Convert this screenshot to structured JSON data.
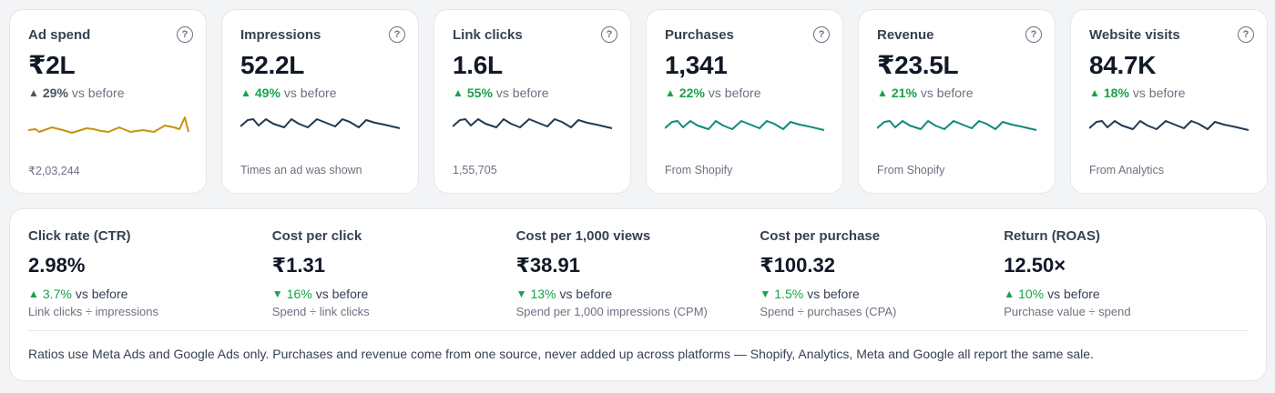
{
  "colors": {
    "gold": "#c9920e",
    "navy": "#1f3a52",
    "teal": "#0f8a7a",
    "green": "#16a34a"
  },
  "kpis": [
    {
      "title": "Ad spend",
      "value": "₹2L",
      "delta": "29%",
      "delta_dir": "up",
      "delta_tone": "gray",
      "vs": "vs before",
      "note": "₹2,03,244",
      "spark_color": "#c9920e",
      "spark_type": "irregular"
    },
    {
      "title": "Impressions",
      "value": "52.2L",
      "delta": "49%",
      "delta_dir": "up",
      "delta_tone": "green",
      "vs": "vs before",
      "note": "Times an ad was shown",
      "spark_color": "#1f3a52",
      "spark_type": "saw"
    },
    {
      "title": "Link clicks",
      "value": "1.6L",
      "delta": "55%",
      "delta_dir": "up",
      "delta_tone": "green",
      "vs": "vs before",
      "note": "1,55,705",
      "spark_color": "#1f3a52",
      "spark_type": "saw"
    },
    {
      "title": "Purchases",
      "value": "1,341",
      "delta": "22%",
      "delta_dir": "up",
      "delta_tone": "green",
      "vs": "vs before",
      "note": "From Shopify",
      "spark_color": "#0f8a7a",
      "spark_type": "saw"
    },
    {
      "title": "Revenue",
      "value": "₹23.5L",
      "delta": "21%",
      "delta_dir": "up",
      "delta_tone": "green",
      "vs": "vs before",
      "note": "From Shopify",
      "spark_color": "#0f8a7a",
      "spark_type": "saw"
    },
    {
      "title": "Website visits",
      "value": "84.7K",
      "delta": "18%",
      "delta_dir": "up",
      "delta_tone": "green",
      "vs": "vs before",
      "note": "From Analytics",
      "spark_color": "#1f3a52",
      "spark_type": "saw"
    }
  ],
  "help_glyph": "?",
  "ratios": [
    {
      "title": "Click rate (CTR)",
      "value": "2.98%",
      "delta": "3.7%",
      "delta_dir": "up",
      "vs": "vs before",
      "sub": "Link clicks ÷ impressions"
    },
    {
      "title": "Cost per click",
      "value": "₹1.31",
      "delta": "16%",
      "delta_dir": "down",
      "vs": "vs before",
      "sub": "Spend ÷ link clicks"
    },
    {
      "title": "Cost per 1,000 views",
      "value": "₹38.91",
      "delta": "13%",
      "delta_dir": "down",
      "vs": "vs before",
      "sub": "Spend per 1,000 impressions (CPM)"
    },
    {
      "title": "Cost per purchase",
      "value": "₹100.32",
      "delta": "1.5%",
      "delta_dir": "down",
      "vs": "vs before",
      "sub": "Spend ÷ purchases (CPA)"
    },
    {
      "title": "Return (ROAS)",
      "value": "12.50×",
      "delta": "10%",
      "delta_dir": "up",
      "vs": "vs before",
      "sub": "Purchase value ÷ spend"
    }
  ],
  "footnote": "Ratios use Meta Ads and Google Ads only. Purchases and revenue come from one source, never added up across platforms — Shopify, Analytics, Meta and Google all report the same sale."
}
